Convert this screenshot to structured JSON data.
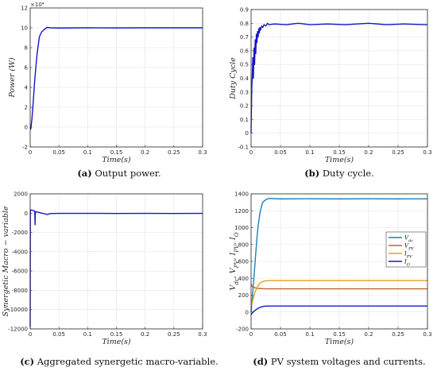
{
  "chart_data": [
    {
      "type": "line",
      "caption_letter": "(a)",
      "caption_text": " Output power.",
      "xlabel": "Time(s)",
      "ylabel": "Power (W)",
      "exponent_label": "×10⁴",
      "xlim": [
        0,
        0.3
      ],
      "ylim": [
        -2,
        12
      ],
      "xticks": [
        0,
        0.05,
        0.1,
        0.15,
        0.2,
        0.25,
        0.3
      ],
      "yticks": [
        -2,
        0,
        2,
        4,
        6,
        8,
        10,
        12
      ],
      "grid": true,
      "series": [
        {
          "color": "#1515c8",
          "x": [
            0,
            0.001,
            0.003,
            0.005,
            0.008,
            0.012,
            0.016,
            0.02,
            0.025,
            0.03,
            0.035,
            0.05,
            0.1,
            0.15,
            0.2,
            0.25,
            0.3
          ],
          "y": [
            0,
            -0.2,
            0.8,
            2.3,
            4.8,
            7.4,
            9.1,
            9.6,
            9.85,
            10.05,
            10.0,
            9.98,
            10.0,
            9.99,
            10.0,
            10.0,
            10.0
          ]
        }
      ]
    },
    {
      "type": "line",
      "caption_letter": "(b)",
      "caption_text": " Duty cycle.",
      "xlabel": "Time(s)",
      "ylabel": "Duty Cycle",
      "xlim": [
        0,
        0.3
      ],
      "ylim": [
        -0.1,
        0.9
      ],
      "xticks": [
        0,
        0.05,
        0.1,
        0.15,
        0.2,
        0.25,
        0.3
      ],
      "yticks": [
        -0.1,
        0,
        0.1,
        0.2,
        0.3,
        0.4,
        0.5,
        0.6,
        0.7,
        0.8,
        0.9
      ],
      "grid": true,
      "series": [
        {
          "color": "#1515c8",
          "x": [
            0,
            0.0005,
            0.001,
            0.002,
            0.003,
            0.004,
            0.005,
            0.006,
            0.007,
            0.008,
            0.009,
            0.01,
            0.011,
            0.012,
            0.013,
            0.014,
            0.015,
            0.016,
            0.018,
            0.02,
            0.022,
            0.025,
            0.028,
            0.03,
            0.04,
            0.06,
            0.08,
            0.1,
            0.13,
            0.16,
            0.2,
            0.23,
            0.26,
            0.3
          ],
          "y": [
            0.0,
            0.15,
            0.3,
            0.42,
            0.55,
            0.4,
            0.62,
            0.5,
            0.68,
            0.58,
            0.72,
            0.66,
            0.74,
            0.7,
            0.76,
            0.73,
            0.77,
            0.75,
            0.78,
            0.77,
            0.79,
            0.78,
            0.8,
            0.79,
            0.795,
            0.79,
            0.8,
            0.79,
            0.795,
            0.79,
            0.8,
            0.79,
            0.795,
            0.79
          ]
        }
      ]
    },
    {
      "type": "line",
      "caption_letter": "(c)",
      "caption_text": " Aggregated synergetic macro-variable.",
      "xlabel": "Time(s)",
      "ylabel": "Synergetic Macro − variable",
      "xlim": [
        0,
        0.3
      ],
      "ylim": [
        -12000,
        2000
      ],
      "xticks": [
        0,
        0.05,
        0.1,
        0.15,
        0.2,
        0.25,
        0.3
      ],
      "yticks": [
        -12000,
        -10000,
        -8000,
        -6000,
        -4000,
        -2000,
        0,
        2000
      ],
      "grid": true,
      "series": [
        {
          "color": "#1515c8",
          "x": [
            0,
            0.0003,
            0.0006,
            0.001,
            0.002,
            0.004,
            0.006,
            0.008,
            0.0085,
            0.009,
            0.012,
            0.015,
            0.02,
            0.025,
            0.03,
            0.035,
            0.05,
            0.1,
            0.15,
            0.2,
            0.25,
            0.3
          ],
          "y": [
            -11800,
            300,
            350,
            300,
            320,
            280,
            250,
            200,
            -1200,
            150,
            120,
            80,
            0,
            -60,
            -150,
            -40,
            -20,
            -20,
            -30,
            -20,
            -30,
            -20
          ]
        }
      ]
    },
    {
      "type": "line",
      "caption_letter": "(d)",
      "caption_text": " PV system voltages and currents.",
      "xlabel": "Time(s)",
      "ylabel": "V_dc, V_PV, I_PV, I_O",
      "xlim": [
        0,
        0.3
      ],
      "ylim": [
        -200,
        1400
      ],
      "xticks": [
        0,
        0.05,
        0.1,
        0.15,
        0.2,
        0.25,
        0.3
      ],
      "yticks": [
        -200,
        0,
        200,
        400,
        600,
        800,
        1000,
        1200,
        1400
      ],
      "grid": true,
      "legend_position": "middle-right",
      "series": [
        {
          "name": "Vdc",
          "name_main": "V",
          "name_sub": "dc",
          "color": "#1f7fb4",
          "x": [
            0,
            0.002,
            0.005,
            0.008,
            0.01,
            0.012,
            0.015,
            0.018,
            0.02,
            0.025,
            0.03,
            0.05,
            0.1,
            0.15,
            0.2,
            0.25,
            0.3
          ],
          "y": [
            0,
            150,
            420,
            700,
            880,
            1020,
            1170,
            1260,
            1300,
            1330,
            1345,
            1340,
            1342,
            1340,
            1342,
            1340,
            1341
          ]
        },
        {
          "name": "VPV",
          "name_main": "V",
          "name_sub": "PV",
          "color": "#c8612a",
          "x": [
            0,
            0.002,
            0.005,
            0.008,
            0.012,
            0.016,
            0.02,
            0.03,
            0.05,
            0.1,
            0.2,
            0.3
          ],
          "y": [
            330,
            300,
            290,
            285,
            280,
            278,
            276,
            275,
            275,
            275,
            275,
            275
          ]
        },
        {
          "name": "IPV",
          "name_main": "I",
          "name_sub": "PV",
          "color": "#e3a321",
          "x": [
            0,
            0.003,
            0.006,
            0.01,
            0.014,
            0.018,
            0.022,
            0.026,
            0.03,
            0.05,
            0.1,
            0.2,
            0.3
          ],
          "y": [
            60,
            140,
            220,
            290,
            335,
            355,
            365,
            370,
            372,
            372,
            372,
            372,
            372
          ]
        },
        {
          "name": "IO",
          "name_main": "I",
          "name_sub": "O",
          "color": "#1818c6",
          "x": [
            0,
            0.003,
            0.006,
            0.01,
            0.014,
            0.018,
            0.022,
            0.026,
            0.03,
            0.05,
            0.1,
            0.2,
            0.3
          ],
          "y": [
            -30,
            -5,
            15,
            35,
            52,
            62,
            68,
            70,
            71,
            71,
            71,
            71,
            71
          ]
        }
      ]
    }
  ]
}
